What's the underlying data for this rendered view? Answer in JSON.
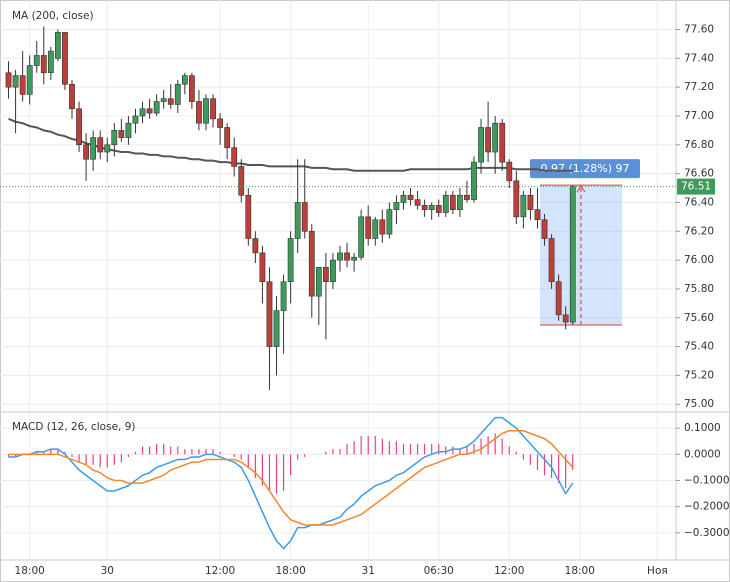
{
  "chart_data": [
    {
      "type": "candlestick",
      "title": "MA (200, close)",
      "categories": [
        null,
        null,
        null,
        "18:00",
        null,
        null,
        null,
        null,
        null,
        null,
        null,
        null,
        null,
        null,
        "30",
        null,
        null,
        null,
        null,
        null,
        null,
        null,
        null,
        null,
        null,
        null,
        null,
        null,
        null,
        null,
        "12:00",
        null,
        null,
        null,
        null,
        null,
        null,
        null,
        null,
        null,
        "18:00",
        null,
        null,
        null,
        null,
        null,
        null,
        null,
        null,
        null,
        null,
        "31",
        null,
        null,
        null,
        null,
        null,
        null,
        null,
        null,
        null,
        "06:30",
        null,
        null,
        null,
        null,
        null,
        null,
        null,
        null,
        null,
        "12:00",
        null,
        null,
        null,
        null,
        null,
        null,
        null,
        null,
        null,
        "18:00",
        null,
        null,
        null,
        null,
        null,
        null,
        null,
        null,
        null,
        null,
        "Ноя",
        null,
        null
      ],
      "open": [
        77.3,
        77.2,
        77.28,
        77.15,
        77.35,
        77.42,
        77.3,
        77.4,
        77.58,
        77.22,
        77.05,
        76.8,
        76.7,
        76.85,
        76.75,
        76.8,
        76.9,
        76.85,
        76.95,
        77.0,
        77.05,
        77.02,
        77.1,
        77.12,
        77.08,
        77.22,
        77.28,
        77.1,
        76.95,
        77.12,
        76.98,
        76.92,
        76.78,
        76.65,
        76.45,
        76.15,
        76.05,
        75.85,
        75.4,
        75.65,
        75.85,
        76.15,
        76.4,
        76.2,
        75.75,
        75.95,
        75.85,
        76.0,
        76.05,
        76.0,
        76.02,
        76.3,
        76.15,
        76.28,
        76.18,
        76.35,
        76.4,
        76.45,
        76.42,
        76.38,
        76.35,
        76.38,
        76.33,
        76.45,
        76.35,
        76.45,
        76.42,
        76.68,
        76.92,
        76.75,
        76.95,
        76.68,
        76.55,
        76.3,
        76.45,
        76.35,
        76.28,
        76.15,
        75.85,
        75.62,
        75.57,
        null,
        null,
        null,
        null,
        null,
        null,
        null,
        null,
        null,
        null,
        null,
        null,
        null,
        null
      ],
      "high": [
        77.38,
        77.32,
        77.45,
        77.42,
        77.52,
        77.62,
        77.48,
        77.6,
        77.58,
        77.25,
        77.1,
        76.88,
        76.9,
        76.9,
        76.85,
        76.95,
        76.98,
        77.0,
        77.05,
        77.1,
        77.12,
        77.15,
        77.18,
        77.22,
        77.25,
        77.3,
        77.3,
        77.18,
        77.15,
        77.15,
        77.02,
        76.95,
        76.85,
        76.7,
        76.5,
        76.2,
        76.1,
        75.95,
        75.75,
        75.9,
        76.2,
        76.7,
        76.7,
        76.25,
        75.95,
        76.05,
        76.05,
        76.1,
        76.12,
        76.05,
        76.35,
        76.38,
        76.3,
        76.35,
        76.4,
        76.45,
        76.48,
        76.5,
        76.48,
        76.42,
        76.4,
        76.42,
        76.48,
        76.48,
        76.5,
        76.55,
        76.72,
        76.98,
        77.1,
        77.0,
        76.98,
        76.7,
        76.62,
        76.48,
        76.5,
        76.5,
        76.32,
        76.18,
        75.9,
        75.68,
        76.52,
        null,
        null,
        null,
        null,
        null,
        null,
        null,
        null,
        null,
        null,
        null,
        null,
        null,
        null
      ],
      "low": [
        77.12,
        76.88,
        77.1,
        77.08,
        77.3,
        77.22,
        77.25,
        77.38,
        77.18,
        76.98,
        76.75,
        76.55,
        76.62,
        76.7,
        76.68,
        76.72,
        76.82,
        76.8,
        76.88,
        76.95,
        76.98,
        77.0,
        77.05,
        77.05,
        77.02,
        77.15,
        77.05,
        76.9,
        76.9,
        76.92,
        76.8,
        76.7,
        76.58,
        76.4,
        76.1,
        75.98,
        75.7,
        75.1,
        75.2,
        75.35,
        75.7,
        76.05,
        76.15,
        75.6,
        75.55,
        75.45,
        75.8,
        75.92,
        75.95,
        75.92,
        76.0,
        76.1,
        76.1,
        76.12,
        76.15,
        76.25,
        76.35,
        76.38,
        76.35,
        76.3,
        76.28,
        76.3,
        76.3,
        76.32,
        76.3,
        76.4,
        76.4,
        76.6,
        76.68,
        76.6,
        76.62,
        76.5,
        76.25,
        76.22,
        76.28,
        76.22,
        76.1,
        75.8,
        75.58,
        75.52,
        75.55,
        null,
        null,
        null,
        null,
        null,
        null,
        null,
        null,
        null,
        null,
        null,
        null,
        null,
        null
      ],
      "close": [
        77.2,
        77.28,
        77.15,
        77.35,
        77.42,
        77.3,
        77.45,
        77.58,
        77.22,
        77.05,
        76.8,
        76.7,
        76.85,
        76.75,
        76.8,
        76.9,
        76.85,
        76.95,
        77.0,
        77.05,
        77.02,
        77.1,
        77.12,
        77.08,
        77.22,
        77.28,
        77.1,
        76.95,
        77.12,
        76.98,
        76.92,
        76.78,
        76.65,
        76.45,
        76.15,
        76.05,
        75.85,
        75.4,
        75.65,
        75.85,
        76.15,
        76.4,
        76.2,
        75.75,
        75.95,
        75.85,
        76.0,
        76.05,
        76.0,
        76.02,
        76.3,
        76.15,
        76.28,
        76.18,
        76.35,
        76.4,
        76.45,
        76.42,
        76.38,
        76.35,
        76.38,
        76.33,
        76.45,
        76.35,
        76.45,
        76.42,
        76.68,
        76.92,
        76.75,
        76.95,
        76.68,
        76.55,
        76.3,
        76.45,
        76.35,
        76.28,
        76.15,
        75.85,
        75.62,
        75.57,
        76.51,
        null,
        null,
        null,
        null,
        null,
        null,
        null,
        null,
        null,
        null,
        null,
        null,
        null,
        null
      ],
      "up_color": "#3f9b5c",
      "down_color": "#b9413a",
      "series": [
        {
          "name": "MA (200, close)",
          "color": "#555555",
          "values": [
            76.98,
            76.96,
            76.95,
            76.93,
            76.92,
            76.9,
            76.89,
            76.87,
            76.86,
            76.84,
            76.83,
            76.81,
            76.8,
            76.78,
            76.77,
            76.76,
            76.75,
            76.75,
            76.74,
            76.74,
            76.73,
            76.73,
            76.72,
            76.72,
            76.71,
            76.71,
            76.7,
            76.7,
            76.69,
            76.69,
            76.68,
            76.68,
            76.67,
            76.67,
            76.66,
            76.66,
            76.66,
            76.65,
            76.65,
            76.65,
            76.65,
            76.65,
            76.65,
            76.64,
            76.64,
            76.64,
            76.63,
            76.63,
            76.63,
            76.62,
            76.62,
            76.62,
            76.62,
            76.62,
            76.62,
            76.62,
            76.62,
            76.63,
            76.63,
            76.63,
            76.63,
            76.63,
            76.63,
            76.63,
            76.63,
            76.63,
            76.64,
            76.64,
            76.64,
            76.64,
            76.64,
            76.64,
            76.63,
            76.63,
            76.63,
            76.63,
            76.62,
            76.62,
            76.62,
            76.62,
            76.62,
            null,
            null,
            null,
            null,
            null,
            null,
            null,
            null,
            null,
            null,
            null,
            null,
            null,
            null
          ]
        }
      ],
      "last_price": 76.51,
      "last_price_color": "#3f9b5c",
      "measure": {
        "label": "0.97 (1.28%) 97",
        "low": 75.55,
        "high": 76.52
      },
      "ylim": [
        74.96,
        77.77
      ],
      "yticks": [
        {
          "value": 75.0,
          "label": "75.00"
        },
        {
          "value": 75.2,
          "label": "75.20"
        },
        {
          "value": 75.4,
          "label": "75.40"
        },
        {
          "value": 75.6,
          "label": "75.60"
        },
        {
          "value": 75.8,
          "label": "75.80"
        },
        {
          "value": 76.0,
          "label": "76.00"
        },
        {
          "value": 76.2,
          "label": "76.20"
        },
        {
          "value": 76.4,
          "label": "76.40"
        },
        {
          "value": 76.6,
          "label": "76.60"
        },
        {
          "value": 76.8,
          "label": "76.80"
        },
        {
          "value": 77.0,
          "label": "77.00"
        },
        {
          "value": 77.2,
          "label": "77.20"
        },
        {
          "value": 77.4,
          "label": "77.40"
        },
        {
          "value": 77.6,
          "label": "77.60"
        }
      ],
      "grid": true
    },
    {
      "type": "macd",
      "title": "MACD (12, 26, close, 9)",
      "histogram": {
        "color": "#ee3d86",
        "values": [
          -0.01,
          -0.01,
          0.0,
          0.0,
          0.01,
          0.01,
          0.02,
          0.02,
          0.01,
          -0.01,
          -0.03,
          -0.04,
          -0.04,
          -0.05,
          -0.05,
          -0.04,
          -0.03,
          -0.01,
          0.01,
          0.03,
          0.03,
          0.04,
          0.04,
          0.03,
          0.03,
          0.02,
          0.02,
          0.02,
          0.02,
          0.02,
          0.01,
          0.0,
          -0.01,
          -0.02,
          -0.05,
          -0.09,
          -0.12,
          -0.14,
          -0.15,
          -0.14,
          -0.08,
          -0.02,
          -0.01,
          0.0,
          0.0,
          0.01,
          0.02,
          0.02,
          0.04,
          0.05,
          0.07,
          0.07,
          0.07,
          0.06,
          0.05,
          0.05,
          0.04,
          0.04,
          0.04,
          0.04,
          0.04,
          0.04,
          0.03,
          0.03,
          0.02,
          0.03,
          0.04,
          0.06,
          0.07,
          0.08,
          0.06,
          0.03,
          0.01,
          -0.02,
          -0.04,
          -0.06,
          -0.08,
          -0.09,
          -0.11,
          -0.13,
          -0.06,
          null,
          null,
          null,
          null,
          null,
          null,
          null,
          null,
          null,
          null,
          null,
          null,
          null,
          null
        ]
      },
      "series": [
        {
          "color": "#3d9be9",
          "values": [
            -0.01,
            -0.01,
            0.0,
            0.0,
            0.01,
            0.01,
            0.02,
            0.02,
            0.0,
            -0.03,
            -0.06,
            -0.08,
            -0.1,
            -0.12,
            -0.14,
            -0.14,
            -0.13,
            -0.12,
            -0.1,
            -0.08,
            -0.07,
            -0.05,
            -0.04,
            -0.03,
            -0.02,
            -0.02,
            -0.01,
            -0.01,
            0.0,
            0.0,
            -0.01,
            -0.02,
            -0.03,
            -0.05,
            -0.1,
            -0.16,
            -0.22,
            -0.28,
            -0.33,
            -0.36,
            -0.33,
            -0.28,
            -0.28,
            -0.27,
            -0.27,
            -0.26,
            -0.25,
            -0.24,
            -0.21,
            -0.19,
            -0.16,
            -0.14,
            -0.12,
            -0.11,
            -0.1,
            -0.08,
            -0.07,
            -0.05,
            -0.03,
            -0.01,
            0.0,
            0.01,
            0.01,
            0.02,
            0.02,
            0.03,
            0.05,
            0.08,
            0.11,
            0.14,
            0.14,
            0.12,
            0.1,
            0.07,
            0.04,
            0.01,
            -0.02,
            -0.05,
            -0.1,
            -0.15,
            -0.11,
            null,
            null,
            null,
            null,
            null,
            null,
            null,
            null,
            null,
            null,
            null,
            null,
            null,
            null
          ]
        },
        {
          "color": "#f5872b",
          "values": [
            0.0,
            0.0,
            0.0,
            0.0,
            0.0,
            0.0,
            0.0,
            0.0,
            -0.01,
            -0.02,
            -0.03,
            -0.04,
            -0.06,
            -0.07,
            -0.09,
            -0.1,
            -0.1,
            -0.11,
            -0.11,
            -0.11,
            -0.1,
            -0.09,
            -0.08,
            -0.06,
            -0.05,
            -0.04,
            -0.03,
            -0.03,
            -0.02,
            -0.02,
            -0.02,
            -0.02,
            -0.02,
            -0.03,
            -0.05,
            -0.07,
            -0.1,
            -0.14,
            -0.18,
            -0.22,
            -0.25,
            -0.26,
            -0.27,
            -0.27,
            -0.27,
            -0.27,
            -0.27,
            -0.26,
            -0.25,
            -0.24,
            -0.23,
            -0.21,
            -0.19,
            -0.17,
            -0.15,
            -0.13,
            -0.11,
            -0.09,
            -0.07,
            -0.05,
            -0.04,
            -0.03,
            -0.02,
            -0.01,
            0.0,
            0.0,
            0.01,
            0.02,
            0.04,
            0.06,
            0.08,
            0.09,
            0.09,
            0.09,
            0.08,
            0.07,
            0.06,
            0.04,
            0.01,
            -0.02,
            -0.05,
            null,
            null,
            null,
            null,
            null,
            null,
            null,
            null,
            null,
            null,
            null,
            null,
            null,
            null
          ]
        }
      ],
      "ylim": [
        -0.396,
        0.154
      ],
      "yticks": [
        {
          "value": 0.1,
          "label": "0.1000"
        },
        {
          "value": 0,
          "label": "0.0000"
        },
        {
          "value": -0.1,
          "label": "−0.1000"
        },
        {
          "value": -0.2,
          "label": "−0.2000"
        },
        {
          "value": -0.3,
          "label": "−0.3000"
        }
      ],
      "grid": true
    }
  ]
}
